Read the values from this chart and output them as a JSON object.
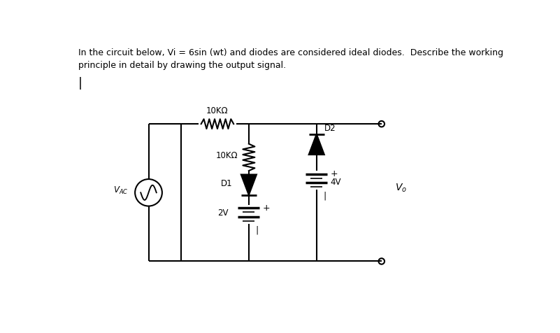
{
  "title_line1": "In the circuit below, Vi = 6sin (wt) and diodes are considered ideal diodes.  Describe the working",
  "title_line2": "principle in detail by drawing the output signal.",
  "background_color": "#ffffff",
  "line_color": "#000000",
  "fig_width": 8.01,
  "fig_height": 4.77,
  "dpi": 100,
  "resistor_label_top": "10KΩ",
  "resistor_label_mid": "10KΩ",
  "diode_label_d1": "D1",
  "diode_label_d2": "D2",
  "battery_label_2v": "2V",
  "battery_label_4v": "4V",
  "source_label": "VAC",
  "output_label": "Vo",
  "cursor_char": "|"
}
